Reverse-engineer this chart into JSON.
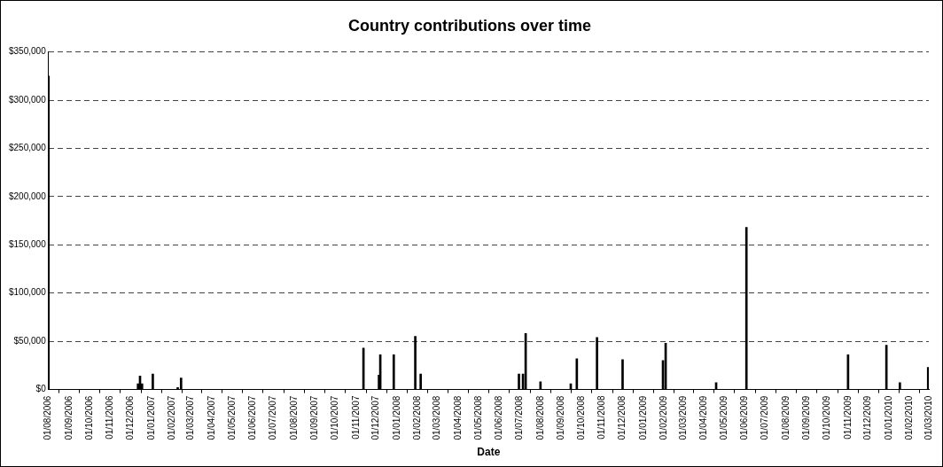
{
  "chart_data": {
    "type": "bar",
    "title": "Country contributions over time",
    "xlabel": "Date",
    "x": [
      "2006-08-01",
      "2006-12-12",
      "2006-12-15",
      "2006-12-18",
      "2007-01-03",
      "2007-02-09",
      "2007-02-14",
      "2007-11-12",
      "2007-12-05",
      "2007-12-07",
      "2007-12-27",
      "2008-01-28",
      "2008-02-05",
      "2008-06-30",
      "2008-07-06",
      "2008-07-10",
      "2008-08-01",
      "2008-09-15",
      "2008-09-24",
      "2008-10-24",
      "2008-12-01",
      "2009-01-30",
      "2009-02-03",
      "2009-04-19",
      "2009-06-03",
      "2009-11-01",
      "2009-12-28",
      "2010-01-17",
      "2010-02-28"
    ],
    "values": [
      325000,
      6000,
      14000,
      6000,
      16000,
      2000,
      12000,
      43000,
      15000,
      36000,
      36000,
      55000,
      16000,
      16000,
      16000,
      58000,
      8000,
      6000,
      32000,
      54000,
      31000,
      30000,
      48000,
      7000,
      168000,
      36000,
      46000,
      7000,
      23000
    ],
    "color": "#000000",
    "xlim": [
      "2006-08-01",
      "2010-03-01"
    ],
    "xticks": [
      {
        "value": "2006-08-01",
        "label": "01/08/2006"
      },
      {
        "value": "2006-09-01",
        "label": "01/09/2006"
      },
      {
        "value": "2006-10-01",
        "label": "01/10/2006"
      },
      {
        "value": "2006-11-01",
        "label": "01/11/2006"
      },
      {
        "value": "2006-12-01",
        "label": "01/12/2006"
      },
      {
        "value": "2007-01-01",
        "label": "01/01/2007"
      },
      {
        "value": "2007-02-01",
        "label": "01/02/2007"
      },
      {
        "value": "2007-03-01",
        "label": "01/03/2007"
      },
      {
        "value": "2007-04-01",
        "label": "01/04/2007"
      },
      {
        "value": "2007-05-01",
        "label": "01/05/2007"
      },
      {
        "value": "2007-06-01",
        "label": "01/06/2007"
      },
      {
        "value": "2007-07-01",
        "label": "01/07/2007"
      },
      {
        "value": "2007-08-01",
        "label": "01/08/2007"
      },
      {
        "value": "2007-09-01",
        "label": "01/09/2007"
      },
      {
        "value": "2007-10-01",
        "label": "01/10/2007"
      },
      {
        "value": "2007-11-01",
        "label": "01/11/2007"
      },
      {
        "value": "2007-12-01",
        "label": "01/12/2007"
      },
      {
        "value": "2008-01-01",
        "label": "01/01/2008"
      },
      {
        "value": "2008-02-01",
        "label": "01/02/2008"
      },
      {
        "value": "2008-03-01",
        "label": "01/03/2008"
      },
      {
        "value": "2008-04-01",
        "label": "01/04/2008"
      },
      {
        "value": "2008-05-01",
        "label": "01/05/2008"
      },
      {
        "value": "2008-06-01",
        "label": "01/06/2008"
      },
      {
        "value": "2008-07-01",
        "label": "01/07/2008"
      },
      {
        "value": "2008-08-01",
        "label": "01/08/2008"
      },
      {
        "value": "2008-09-01",
        "label": "01/09/2008"
      },
      {
        "value": "2008-10-01",
        "label": "01/10/2008"
      },
      {
        "value": "2008-11-01",
        "label": "01/11/2008"
      },
      {
        "value": "2008-12-01",
        "label": "01/12/2008"
      },
      {
        "value": "2009-01-01",
        "label": "01/01/2009"
      },
      {
        "value": "2009-02-01",
        "label": "01/02/2009"
      },
      {
        "value": "2009-03-01",
        "label": "01/03/2009"
      },
      {
        "value": "2009-04-01",
        "label": "01/04/2009"
      },
      {
        "value": "2009-05-01",
        "label": "01/05/2009"
      },
      {
        "value": "2009-06-01",
        "label": "01/06/2009"
      },
      {
        "value": "2009-07-01",
        "label": "01/07/2009"
      },
      {
        "value": "2009-08-01",
        "label": "01/08/2009"
      },
      {
        "value": "2009-09-01",
        "label": "01/09/2009"
      },
      {
        "value": "2009-10-01",
        "label": "01/10/2009"
      },
      {
        "value": "2009-11-01",
        "label": "01/11/2009"
      },
      {
        "value": "2009-12-01",
        "label": "01/12/2009"
      },
      {
        "value": "2010-01-01",
        "label": "01/01/2010"
      },
      {
        "value": "2010-02-01",
        "label": "01/02/2010"
      },
      {
        "value": "2010-03-01",
        "label": "01/03/2010"
      }
    ],
    "ylim": [
      0,
      350000
    ],
    "yticks": [
      {
        "value": 0,
        "label": "$0"
      },
      {
        "value": 50000,
        "label": "$50,000"
      },
      {
        "value": 100000,
        "label": "$100,000"
      },
      {
        "value": 150000,
        "label": "$150,000"
      },
      {
        "value": 200000,
        "label": "$200,000"
      },
      {
        "value": 250000,
        "label": "$250,000"
      },
      {
        "value": 300000,
        "label": "$300,000"
      },
      {
        "value": 350000,
        "label": "$350,000"
      }
    ],
    "grid": "y",
    "legend": false
  }
}
